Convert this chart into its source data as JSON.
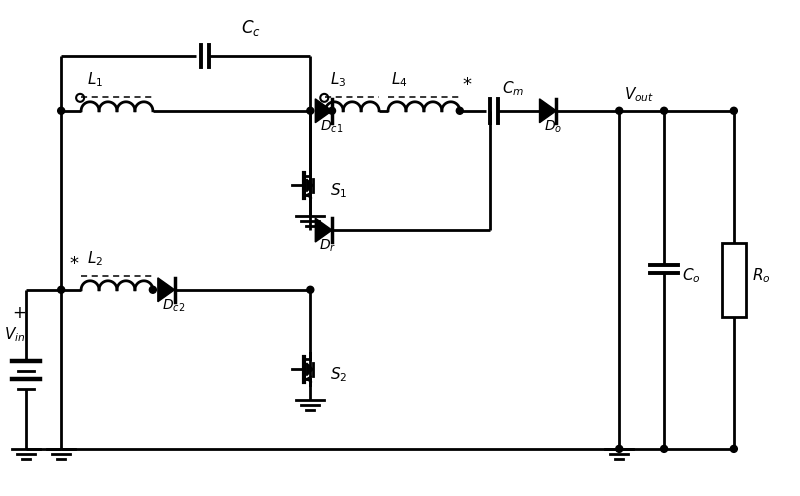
{
  "background": "#ffffff",
  "line_color": "#000000",
  "line_width": 2.0,
  "fig_width": 8.0,
  "fig_height": 4.96,
  "dpi": 100
}
